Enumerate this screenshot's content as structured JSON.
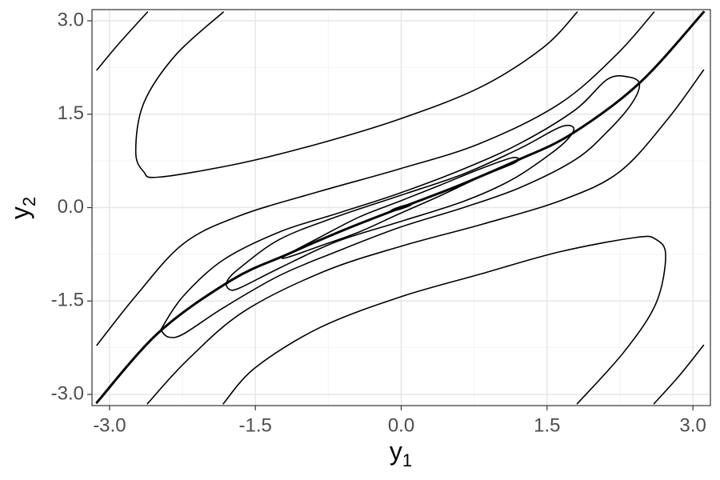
{
  "chart_data": {
    "type": "contour",
    "x_label": "y",
    "x_label_sub": "1",
    "y_label": "y",
    "y_label_sub": "2",
    "xlim": [
      -3.18,
      3.18
    ],
    "ylim": [
      -3.18,
      3.18
    ],
    "xticks": [
      {
        "value": -3,
        "label": "-3.0"
      },
      {
        "value": -1.5,
        "label": "-1.5"
      },
      {
        "value": 0,
        "label": "0.0"
      },
      {
        "value": 1.5,
        "label": "1.5"
      },
      {
        "value": 3,
        "label": "3.0"
      }
    ],
    "yticks": [
      {
        "value": -3,
        "label": "-3.0"
      },
      {
        "value": -1.5,
        "label": "-1.5"
      },
      {
        "value": 0,
        "label": "0.0"
      },
      {
        "value": 1.5,
        "label": "1.5"
      },
      {
        "value": 3,
        "label": "3.0"
      }
    ],
    "minor_breaks": [
      -2.25,
      -0.75,
      0.75,
      2.25
    ],
    "grid": true,
    "color": "#000000",
    "series": [
      {
        "closed": false,
        "width": 3,
        "x": [
          -3.13,
          -2.49,
          -1.74,
          -1.17,
          -0.59,
          0,
          0.6,
          1.18,
          1.75,
          2.45,
          3.11
        ],
        "y": [
          -3.13,
          -2.0,
          -1.16,
          -0.75,
          -0.36,
          0,
          0.36,
          0.75,
          1.18,
          2.0,
          3.14
        ]
      },
      {
        "closed": true,
        "width": 3,
        "x": [
          -0.1,
          0,
          0.1,
          0
        ],
        "y": [
          -0.05,
          0.01,
          0.05,
          -0.01
        ]
      },
      {
        "closed": true,
        "width": 1.6,
        "x": [
          -1.19,
          -0.84,
          -0.43,
          -0.02,
          0.4,
          0.81,
          1.14,
          1.18,
          0.81,
          0.4,
          -0.02,
          -0.43,
          -0.84,
          -1.17
        ],
        "y": [
          -0.77,
          -0.48,
          -0.15,
          0.1,
          0.36,
          0.62,
          0.8,
          0.73,
          0.49,
          0.19,
          -0.1,
          -0.39,
          -0.62,
          -0.8
        ]
      },
      {
        "closed": true,
        "width": 1.6,
        "x": [
          -1.79,
          -1.66,
          -1.25,
          -0.67,
          -0.02,
          0.64,
          1.22,
          1.63,
          1.77,
          1.73,
          1.55,
          1.14,
          0.64,
          -0.02,
          -0.67,
          -1.25,
          -1.66,
          -1.77
        ],
        "y": [
          -1.18,
          -0.97,
          -0.51,
          -0.15,
          0.19,
          0.54,
          0.95,
          1.29,
          1.29,
          1.13,
          0.88,
          0.45,
          0.1,
          -0.23,
          -0.55,
          -0.97,
          -1.29,
          -1.31
        ]
      },
      {
        "closed": true,
        "width": 1.6,
        "x": [
          -2.46,
          -2.24,
          -1.83,
          -1.25,
          -0.67,
          -0.02,
          0.64,
          1.22,
          1.79,
          2.12,
          2.33,
          2.45,
          2.37,
          2.12,
          1.79,
          1.22,
          0.64,
          -0.02,
          -0.67,
          -1.25,
          -1.83,
          -2.24,
          -2.39,
          -2.46
        ],
        "y": [
          -1.93,
          -1.42,
          -0.84,
          -0.39,
          -0.1,
          0.23,
          0.62,
          1.03,
          1.57,
          2.06,
          2.1,
          1.99,
          1.67,
          1.22,
          0.77,
          0.32,
          0.0,
          -0.32,
          -0.71,
          -1.09,
          -1.61,
          -2.03,
          -2.08,
          -1.99
        ]
      },
      {
        "closed": false,
        "width": 1.6,
        "x": [
          -3.13,
          -2.73,
          -2.24,
          -1.66,
          -0.84,
          -0.02,
          0.81,
          1.63,
          2.21,
          2.6
        ],
        "y": [
          -2.21,
          -1.42,
          -0.58,
          -0.13,
          0.26,
          0.62,
          1.03,
          1.67,
          2.45,
          3.14
        ]
      },
      {
        "closed": false,
        "width": 1.6,
        "x": [
          3.11,
          2.74,
          2.25,
          1.67,
          0.85,
          0,
          -0.8,
          -1.62,
          -2.2,
          -2.61
        ],
        "y": [
          2.21,
          1.42,
          0.58,
          0.13,
          -0.26,
          -0.62,
          -1.03,
          -1.67,
          -2.45,
          -3.15
        ]
      },
      {
        "closed": false,
        "width": 1.6,
        "x": [
          -1.83,
          -2.32,
          -2.65,
          -2.73,
          -2.65,
          -2.49,
          -1.66,
          -0.84,
          -0.02,
          0.81,
          1.46,
          1.81
        ],
        "y": [
          3.14,
          2.45,
          1.67,
          0.9,
          0.58,
          0.49,
          0.71,
          1.03,
          1.42,
          1.93,
          2.57,
          3.14
        ]
      },
      {
        "closed": false,
        "width": 1.6,
        "x": [
          1.81,
          2.29,
          2.62,
          2.72,
          2.62,
          2.41,
          1.63,
          0.81,
          -0.02,
          -0.84,
          -1.5,
          -1.83
        ],
        "y": [
          -3.15,
          -2.32,
          -1.54,
          -0.77,
          -0.51,
          -0.48,
          -0.71,
          -1.07,
          -1.44,
          -1.93,
          -2.57,
          -3.15
        ]
      },
      {
        "closed": false,
        "width": 1.6,
        "x": [
          -3.13,
          -2.9,
          -2.61
        ],
        "y": [
          2.21,
          2.64,
          3.14
        ]
      },
      {
        "closed": false,
        "width": 1.6,
        "x": [
          2.6,
          2.86,
          3.11
        ],
        "y": [
          -3.15,
          -2.7,
          -2.21
        ]
      }
    ]
  }
}
